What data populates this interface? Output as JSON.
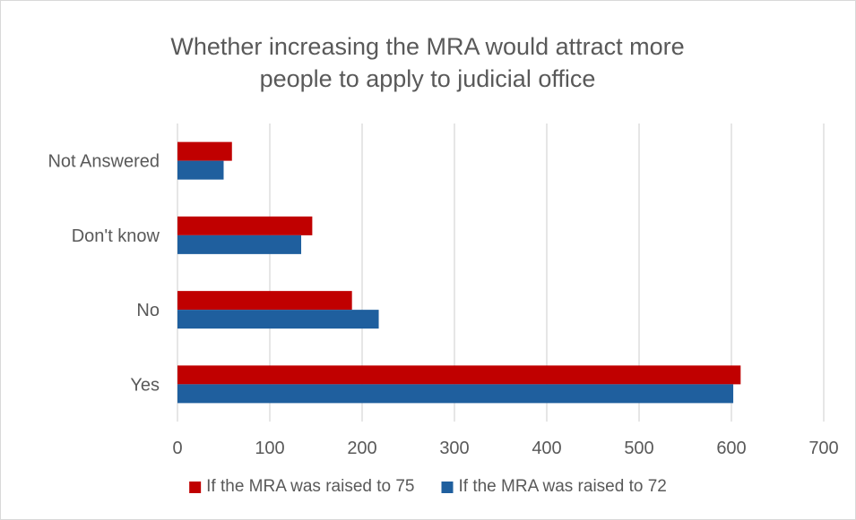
{
  "chart_data": {
    "type": "bar",
    "orientation": "horizontal",
    "title_lines": [
      "Whether increasing the MRA would attract more",
      "people to apply to judicial office"
    ],
    "categories": [
      "Not Answered",
      "Don't know",
      "No",
      "Yes"
    ],
    "series": [
      {
        "name": "If the MRA was raised to 75",
        "color": "#c00000",
        "values": [
          59,
          146,
          189,
          610
        ]
      },
      {
        "name": "If the MRA was raised to 72",
        "color": "#1f5f9e",
        "values": [
          50,
          134,
          218,
          602
        ]
      }
    ],
    "xlim": [
      0,
      700
    ],
    "xticks": [
      0,
      100,
      200,
      300,
      400,
      500,
      600,
      700
    ],
    "grid": true,
    "legend_position": "bottom"
  }
}
